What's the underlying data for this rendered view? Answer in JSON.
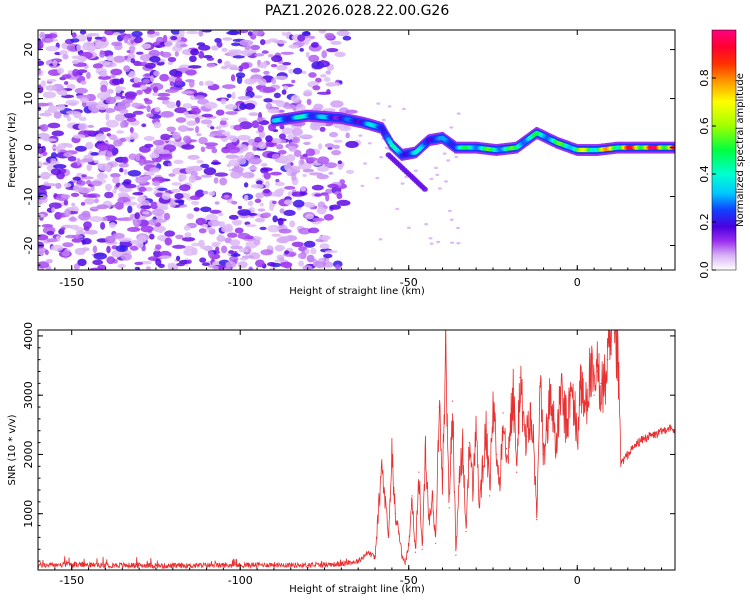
{
  "chart_data": [
    {
      "type": "heatmap",
      "title": "PAZ1.2026.028.22.00.G26",
      "xlabel": "Height of straight line (km)",
      "ylabel": "Frequency (Hz)",
      "xlim": [
        -160,
        29
      ],
      "ylim": [
        -25,
        24
      ],
      "xticks": [
        -150,
        -100,
        -50,
        0
      ],
      "yticks": [
        -20,
        -10,
        0,
        10,
        20
      ],
      "grid": false,
      "colorbar": {
        "label": "Normalized spectral amplitude",
        "range": [
          0,
          1
        ],
        "ticks": [
          0.0,
          0.2,
          0.4,
          0.6,
          0.8
        ],
        "tick_labels": [
          "0.0",
          "0.2",
          "0.4",
          "0.6",
          "0.8"
        ]
      },
      "noise_region_x": [
        -160,
        -65
      ],
      "ridge": [
        {
          "x": -90,
          "f": 5.5,
          "a": 0.35
        },
        {
          "x": -80,
          "f": 6.5,
          "a": 0.45
        },
        {
          "x": -70,
          "f": 6.0,
          "a": 0.25
        },
        {
          "x": -63,
          "f": 5.0,
          "a": 0.35
        },
        {
          "x": -58,
          "f": 4.0,
          "a": 0.4
        },
        {
          "x": -55,
          "f": 0.5,
          "a": 0.45
        },
        {
          "x": -52,
          "f": -1.5,
          "a": 0.35
        },
        {
          "x": -48,
          "f": -1.0,
          "a": 0.4
        },
        {
          "x": -44,
          "f": 1.5,
          "a": 0.35
        },
        {
          "x": -40,
          "f": 2.0,
          "a": 0.3
        },
        {
          "x": -36,
          "f": 0.0,
          "a": 0.45
        },
        {
          "x": -30,
          "f": 0.0,
          "a": 0.55
        },
        {
          "x": -24,
          "f": -0.5,
          "a": 0.55
        },
        {
          "x": -18,
          "f": 0.0,
          "a": 0.55
        },
        {
          "x": -12,
          "f": 3.0,
          "a": 0.5
        },
        {
          "x": -6,
          "f": 1.0,
          "a": 0.55
        },
        {
          "x": 0,
          "f": -0.5,
          "a": 0.65
        },
        {
          "x": 6,
          "f": -0.5,
          "a": 0.75
        },
        {
          "x": 12,
          "f": 0.0,
          "a": 0.85
        },
        {
          "x": 18,
          "f": 0.0,
          "a": 1.0
        },
        {
          "x": 29,
          "f": 0.0,
          "a": 1.0
        }
      ]
    },
    {
      "type": "line",
      "xlabel": "Height of straight line (km)",
      "ylabel": "SNR (10 * v/v)",
      "xlim": [
        -160,
        29
      ],
      "ylim": [
        50,
        4100
      ],
      "xticks": [
        -150,
        -100,
        -50,
        0
      ],
      "yticks": [
        1000,
        2000,
        3000,
        4000
      ],
      "grid": false,
      "color": "#e83030",
      "series": [
        {
          "name": "SNR",
          "x": [
            -160,
            -150,
            -140,
            -130,
            -120,
            -110,
            -100,
            -90,
            -80,
            -70,
            -65,
            -62,
            -60,
            -58,
            -56,
            -55,
            -54,
            -53,
            -52,
            -51,
            -50,
            -49,
            -48,
            -47,
            -46,
            -45,
            -44,
            -43,
            -42,
            -41,
            -40,
            -39,
            -38,
            -37,
            -36,
            -35,
            -34,
            -33,
            -32,
            -31,
            -30,
            -29,
            -28,
            -27,
            -26,
            -25,
            -24,
            -23,
            -22,
            -21,
            -20,
            -19,
            -18,
            -17,
            -16,
            -15,
            -14,
            -13,
            -12,
            -11,
            -10,
            -9,
            -8,
            -7,
            -6,
            -5,
            -4,
            -3,
            -2,
            -1,
            0,
            1,
            2,
            3,
            4,
            5,
            6,
            7,
            8,
            9,
            10,
            11,
            12,
            13,
            15,
            18,
            21,
            24,
            27,
            29
          ],
          "values": [
            130,
            140,
            130,
            130,
            120,
            130,
            130,
            140,
            130,
            150,
            200,
            350,
            250,
            1800,
            600,
            2000,
            1000,
            700,
            300,
            150,
            500,
            1300,
            350,
            1700,
            400,
            2100,
            900,
            1300,
            500,
            2800,
            1600,
            3800,
            1100,
            2900,
            300,
            1600,
            2100,
            700,
            2200,
            1400,
            2500,
            1100,
            1800,
            2400,
            1300,
            2900,
            2000,
            1500,
            2700,
            2100,
            2300,
            3100,
            1700,
            3300,
            2500,
            2300,
            2600,
            2200,
            900,
            3200,
            2000,
            2400,
            3000,
            2600,
            2100,
            3100,
            2700,
            2500,
            3000,
            2900,
            2200,
            3300,
            2700,
            3100,
            3400,
            3000,
            3400,
            3200,
            3100,
            3600,
            3700,
            4050,
            3600,
            1850,
            2000,
            2200,
            2300,
            2350,
            2450,
            2400
          ]
        }
      ]
    }
  ]
}
